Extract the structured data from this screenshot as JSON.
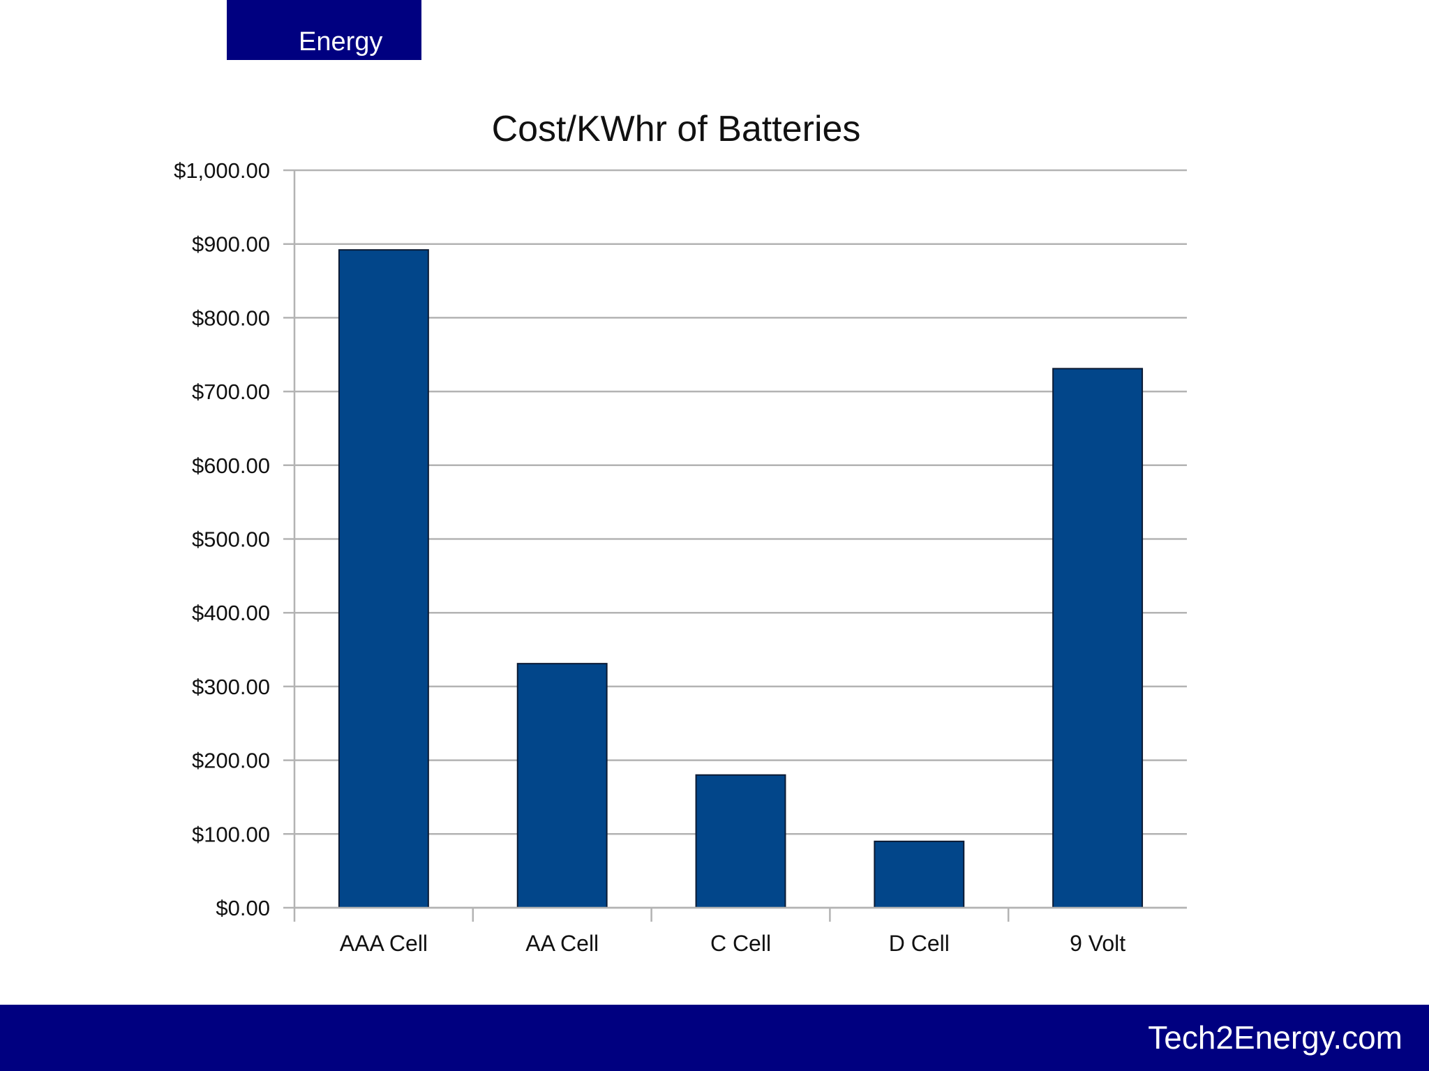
{
  "header": {
    "tab_label": "Energy"
  },
  "footer": {
    "site": "Tech2Energy.com"
  },
  "colors": {
    "nav_bar": "#000080",
    "bar_fill": "#02468A",
    "grid": "#B3B3B3"
  },
  "chart_data": {
    "type": "bar",
    "title": "Cost/KWhr of Batteries",
    "xlabel": "",
    "ylabel": "",
    "categories": [
      "AAA Cell",
      "AA Cell",
      "C Cell",
      "D Cell",
      "9 Volt"
    ],
    "values": [
      892,
      331,
      180,
      90,
      731
    ],
    "ylim": [
      0,
      1000
    ],
    "yticks": [
      0,
      100,
      200,
      300,
      400,
      500,
      600,
      700,
      800,
      900,
      1000
    ],
    "ytick_labels": [
      "$0.00",
      "$100.00",
      "$200.00",
      "$300.00",
      "$400.00",
      "$500.00",
      "$600.00",
      "$700.00",
      "$800.00",
      "$900.00",
      "$1,000.00"
    ],
    "grid": true,
    "legend": "none"
  }
}
